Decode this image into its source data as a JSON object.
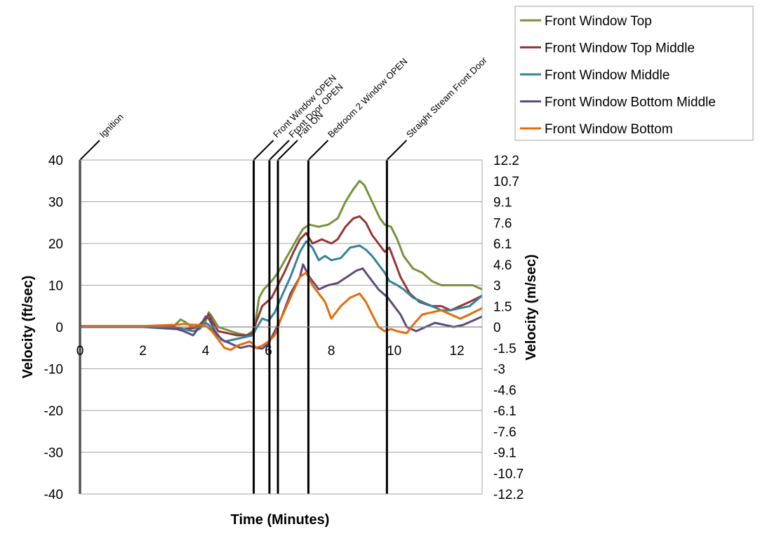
{
  "chart_data": {
    "type": "line",
    "xlabel": "Time (Minutes)",
    "ylabel": "Velocity (ft/sec)",
    "y2label": "Velocity (m/sec)",
    "xlim": [
      0,
      12.8
    ],
    "ylim": [
      -40,
      40
    ],
    "x_ticks": [
      0,
      2,
      4,
      6,
      8,
      10,
      12
    ],
    "y_ticks": [
      -40,
      -30,
      -20,
      -10,
      0,
      10,
      20,
      30,
      40
    ],
    "y2_ticks": [
      "-12.2",
      "-10.7",
      "-9.1",
      "-7.6",
      "-6.1",
      "-4.6",
      "-3",
      "-1.5",
      "0",
      "1.5",
      "3",
      "4.6",
      "6.1",
      "7.6",
      "9.1",
      "10.7",
      "12.2"
    ],
    "grid": "horizontal",
    "legend": "top-right",
    "events": [
      {
        "label": "Ignition",
        "x": 0
      },
      {
        "label": "Front Window OPEN",
        "x": 5.53
      },
      {
        "label": "Front Door OPEN",
        "x": 6.03
      },
      {
        "label": "Fan ON",
        "x": 6.3
      },
      {
        "label": "Bedroom 2 Window OPEN",
        "x": 7.27
      },
      {
        "label": "Straight Stream Front Door",
        "x": 9.77
      }
    ],
    "series": [
      {
        "name": "Front Window Top",
        "color": "#77933C",
        "points": [
          [
            0,
            0.2
          ],
          [
            1,
            0.2
          ],
          [
            2,
            0.2
          ],
          [
            3,
            0.3
          ],
          [
            3.2,
            1.8
          ],
          [
            3.35,
            1.2
          ],
          [
            3.5,
            0.3
          ],
          [
            3.7,
            -0.3
          ],
          [
            3.85,
            0
          ],
          [
            4.0,
            1.5
          ],
          [
            4.1,
            3.5
          ],
          [
            4.2,
            2.5
          ],
          [
            4.4,
            0
          ],
          [
            4.6,
            -0.5
          ],
          [
            5.0,
            -1.5
          ],
          [
            5.3,
            -2
          ],
          [
            5.5,
            -1
          ],
          [
            5.6,
            2
          ],
          [
            5.7,
            7
          ],
          [
            5.85,
            9
          ],
          [
            6.1,
            11
          ],
          [
            6.3,
            13
          ],
          [
            6.6,
            17
          ],
          [
            6.9,
            21
          ],
          [
            7.1,
            23.5
          ],
          [
            7.3,
            24.5
          ],
          [
            7.6,
            24
          ],
          [
            7.9,
            24.5
          ],
          [
            8.2,
            26
          ],
          [
            8.45,
            30
          ],
          [
            8.7,
            33
          ],
          [
            8.9,
            35
          ],
          [
            9.05,
            34
          ],
          [
            9.3,
            30
          ],
          [
            9.55,
            26
          ],
          [
            9.7,
            24.5
          ],
          [
            9.9,
            24
          ],
          [
            10.1,
            21
          ],
          [
            10.3,
            17
          ],
          [
            10.6,
            14
          ],
          [
            10.9,
            13
          ],
          [
            11.2,
            11
          ],
          [
            11.5,
            10
          ],
          [
            11.8,
            10
          ],
          [
            12.2,
            10
          ],
          [
            12.5,
            10
          ],
          [
            12.8,
            9
          ]
        ]
      },
      {
        "name": "Front Window Top Middle",
        "color": "#953735",
        "points": [
          [
            0,
            0.1
          ],
          [
            1,
            0.1
          ],
          [
            2,
            0.1
          ],
          [
            3,
            0
          ],
          [
            3.3,
            -0.5
          ],
          [
            3.6,
            -0.3
          ],
          [
            3.8,
            0.5
          ],
          [
            4.0,
            2
          ],
          [
            4.1,
            3
          ],
          [
            4.2,
            1.5
          ],
          [
            4.4,
            -1
          ],
          [
            4.7,
            -1.5
          ],
          [
            5.0,
            -2
          ],
          [
            5.3,
            -2
          ],
          [
            5.5,
            -1.5
          ],
          [
            5.6,
            1
          ],
          [
            5.8,
            5
          ],
          [
            6.1,
            7
          ],
          [
            6.3,
            10
          ],
          [
            6.5,
            13
          ],
          [
            6.8,
            18
          ],
          [
            7.0,
            21
          ],
          [
            7.2,
            22.5
          ],
          [
            7.4,
            20
          ],
          [
            7.7,
            21
          ],
          [
            8.0,
            20
          ],
          [
            8.2,
            21
          ],
          [
            8.45,
            24
          ],
          [
            8.7,
            26
          ],
          [
            8.9,
            26.5
          ],
          [
            9.1,
            25
          ],
          [
            9.3,
            22
          ],
          [
            9.5,
            20
          ],
          [
            9.7,
            18
          ],
          [
            9.85,
            19
          ],
          [
            10.0,
            16
          ],
          [
            10.2,
            12
          ],
          [
            10.5,
            8
          ],
          [
            10.8,
            6
          ],
          [
            11.2,
            5
          ],
          [
            11.5,
            5
          ],
          [
            11.8,
            4
          ],
          [
            12.1,
            5
          ],
          [
            12.4,
            6
          ],
          [
            12.8,
            7.5
          ]
        ]
      },
      {
        "name": "Front Window Middle",
        "color": "#31849B",
        "points": [
          [
            0,
            0
          ],
          [
            1,
            0
          ],
          [
            2,
            0
          ],
          [
            3,
            -0.5
          ],
          [
            3.3,
            -0.5
          ],
          [
            3.6,
            -1
          ],
          [
            3.8,
            -0.5
          ],
          [
            4.0,
            1
          ],
          [
            4.1,
            0.5
          ],
          [
            4.3,
            -1.5
          ],
          [
            4.6,
            -3.5
          ],
          [
            4.9,
            -3
          ],
          [
            5.2,
            -2.5
          ],
          [
            5.5,
            -2
          ],
          [
            5.6,
            -0.5
          ],
          [
            5.8,
            2
          ],
          [
            6.0,
            1.5
          ],
          [
            6.2,
            3.5
          ],
          [
            6.4,
            7
          ],
          [
            6.7,
            12
          ],
          [
            7.0,
            18
          ],
          [
            7.2,
            20.5
          ],
          [
            7.4,
            19
          ],
          [
            7.6,
            16
          ],
          [
            7.8,
            17
          ],
          [
            8.0,
            16
          ],
          [
            8.3,
            16.5
          ],
          [
            8.6,
            19
          ],
          [
            8.9,
            19.5
          ],
          [
            9.1,
            18.5
          ],
          [
            9.3,
            17
          ],
          [
            9.5,
            15
          ],
          [
            9.7,
            13
          ],
          [
            9.85,
            11
          ],
          [
            10.1,
            10
          ],
          [
            10.3,
            9
          ],
          [
            10.6,
            7
          ],
          [
            10.9,
            6
          ],
          [
            11.2,
            5
          ],
          [
            11.5,
            4
          ],
          [
            11.8,
            4
          ],
          [
            12.1,
            4.5
          ],
          [
            12.4,
            5
          ],
          [
            12.8,
            7.5
          ]
        ]
      },
      {
        "name": "Front Window Bottom Middle",
        "color": "#604A7B",
        "points": [
          [
            0,
            0
          ],
          [
            1,
            0
          ],
          [
            2,
            0
          ],
          [
            3,
            -0.3
          ],
          [
            3.3,
            -1
          ],
          [
            3.6,
            -2
          ],
          [
            3.8,
            0
          ],
          [
            4.0,
            2.5
          ],
          [
            4.1,
            2
          ],
          [
            4.3,
            -1
          ],
          [
            4.5,
            -3
          ],
          [
            4.8,
            -4
          ],
          [
            5.1,
            -5
          ],
          [
            5.4,
            -4.5
          ],
          [
            5.6,
            -5
          ],
          [
            5.8,
            -5.2
          ],
          [
            6.0,
            -4
          ],
          [
            6.2,
            -1
          ],
          [
            6.4,
            2
          ],
          [
            6.7,
            8
          ],
          [
            7.0,
            12
          ],
          [
            7.1,
            15
          ],
          [
            7.3,
            12
          ],
          [
            7.6,
            9
          ],
          [
            7.9,
            10
          ],
          [
            8.2,
            10.5
          ],
          [
            8.5,
            12
          ],
          [
            8.8,
            13.5
          ],
          [
            9.0,
            14
          ],
          [
            9.2,
            12
          ],
          [
            9.5,
            9
          ],
          [
            9.8,
            7
          ],
          [
            10.0,
            5
          ],
          [
            10.2,
            3
          ],
          [
            10.4,
            0
          ],
          [
            10.7,
            -1
          ],
          [
            11.0,
            0
          ],
          [
            11.3,
            1
          ],
          [
            11.6,
            0.5
          ],
          [
            11.9,
            0
          ],
          [
            12.2,
            0.5
          ],
          [
            12.5,
            1.5
          ],
          [
            12.8,
            2.5
          ]
        ]
      },
      {
        "name": "Front Window Bottom",
        "color": "#E46C0A",
        "points": [
          [
            0,
            0.2
          ],
          [
            1,
            0.2
          ],
          [
            2,
            0.2
          ],
          [
            3,
            0.5
          ],
          [
            3.3,
            0.7
          ],
          [
            3.6,
            0.5
          ],
          [
            3.8,
            0.5
          ],
          [
            4.0,
            0.3
          ],
          [
            4.2,
            -1
          ],
          [
            4.4,
            -3
          ],
          [
            4.6,
            -5
          ],
          [
            4.8,
            -5.5
          ],
          [
            5.0,
            -4.5
          ],
          [
            5.2,
            -4
          ],
          [
            5.4,
            -3.5
          ],
          [
            5.5,
            -4
          ],
          [
            5.6,
            -5
          ],
          [
            5.8,
            -4.5
          ],
          [
            6.0,
            -3.5
          ],
          [
            6.2,
            -2
          ],
          [
            6.4,
            2
          ],
          [
            6.7,
            7
          ],
          [
            7.0,
            12
          ],
          [
            7.2,
            13
          ],
          [
            7.4,
            10
          ],
          [
            7.6,
            8
          ],
          [
            7.8,
            6
          ],
          [
            8.0,
            2
          ],
          [
            8.3,
            5
          ],
          [
            8.6,
            7
          ],
          [
            8.9,
            8
          ],
          [
            9.1,
            6
          ],
          [
            9.3,
            3
          ],
          [
            9.5,
            0
          ],
          [
            9.7,
            -1
          ],
          [
            9.9,
            -0.5
          ],
          [
            10.1,
            -1
          ],
          [
            10.4,
            -1.5
          ],
          [
            10.6,
            0.5
          ],
          [
            10.9,
            3
          ],
          [
            11.2,
            3.5
          ],
          [
            11.5,
            4
          ],
          [
            11.8,
            3
          ],
          [
            12.1,
            2
          ],
          [
            12.4,
            3
          ],
          [
            12.8,
            4.5
          ]
        ]
      }
    ]
  }
}
